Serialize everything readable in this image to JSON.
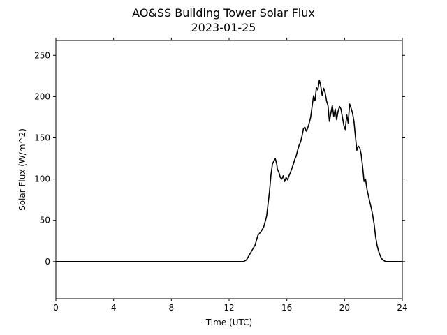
{
  "chart_data": {
    "type": "line",
    "title": "AO&SS Building Tower Solar Flux",
    "subtitle": "2023-01-25",
    "xlabel": "Time (UTC)",
    "ylabel": "Solar Flux (W/m^2)",
    "xlim": [
      0,
      24
    ],
    "ylim": [
      -45,
      268
    ],
    "xticks": [
      0,
      4,
      8,
      12,
      16,
      20,
      24
    ],
    "yticks": [
      0,
      50,
      100,
      150,
      200,
      250
    ],
    "grid": false,
    "line_color": "#000000",
    "series": [
      {
        "x": [
          0,
          1,
          2,
          3,
          4,
          5,
          6,
          7,
          8,
          9,
          10,
          11,
          12,
          13.0,
          13.2,
          13.4,
          13.6,
          13.8,
          14.0,
          14.2,
          14.4,
          14.6,
          14.8,
          14.9,
          15.0,
          15.1,
          15.2,
          15.3,
          15.35,
          15.45,
          15.55,
          15.65,
          15.75,
          15.85,
          15.95,
          16.05,
          16.15,
          16.25,
          16.35,
          16.45,
          16.55,
          16.65,
          16.75,
          16.85,
          16.95,
          17.05,
          17.15,
          17.25,
          17.35,
          17.45,
          17.55,
          17.65,
          17.75,
          17.85,
          17.95,
          18.05,
          18.15,
          18.25,
          18.35,
          18.45,
          18.55,
          18.65,
          18.75,
          18.85,
          18.95,
          19.05,
          19.15,
          19.25,
          19.35,
          19.45,
          19.55,
          19.65,
          19.75,
          19.85,
          19.95,
          20.05,
          20.15,
          20.25,
          20.35,
          20.45,
          20.55,
          20.65,
          20.75,
          20.85,
          20.95,
          21.05,
          21.15,
          21.25,
          21.35,
          21.45,
          21.55,
          21.65,
          21.75,
          21.85,
          21.95,
          22.05,
          22.15,
          22.25,
          22.35,
          22.45,
          22.55,
          22.65,
          22.75,
          22.85,
          22.95,
          23.05,
          23.15,
          23.25,
          23.35,
          23.5,
          24
        ],
        "y": [
          0,
          0,
          0,
          0,
          0,
          0,
          0,
          0,
          0,
          0,
          0,
          0,
          0,
          0,
          2,
          8,
          14,
          20,
          32,
          36,
          42,
          55,
          85,
          105,
          118,
          122,
          125,
          118,
          112,
          108,
          102,
          100,
          104,
          97,
          102,
          99,
          104,
          108,
          113,
          118,
          124,
          128,
          135,
          141,
          145,
          152,
          161,
          163,
          158,
          162,
          168,
          175,
          188,
          201,
          195,
          211,
          208,
          220,
          213,
          201,
          210,
          205,
          195,
          189,
          170,
          180,
          189,
          176,
          185,
          172,
          182,
          188,
          185,
          175,
          165,
          160,
          178,
          168,
          191,
          186,
          180,
          170,
          152,
          135,
          140,
          138,
          130,
          115,
          97,
          100,
          88,
          80,
          72,
          65,
          56,
          45,
          30,
          20,
          13,
          8,
          4,
          2,
          1,
          0,
          0,
          0,
          0,
          0,
          0,
          0,
          0
        ]
      }
    ]
  }
}
